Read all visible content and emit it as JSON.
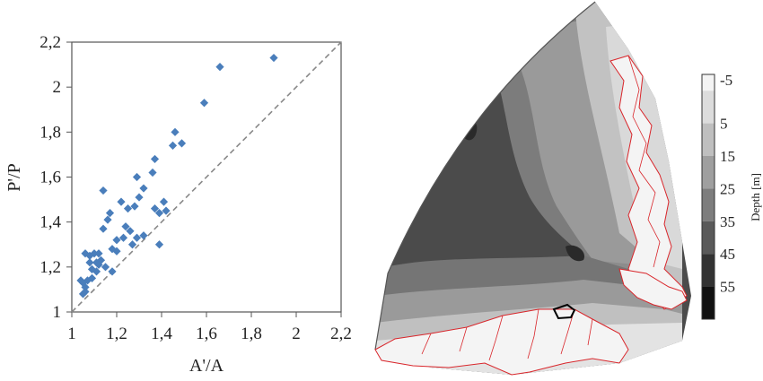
{
  "chart_data": [
    {
      "type": "scatter",
      "title": "",
      "xlabel": "A'/A",
      "ylabel": "P'/P",
      "xlim": [
        1,
        2.2
      ],
      "ylim": [
        1,
        2.2
      ],
      "x_ticks": [
        "1",
        "1,2",
        "1,4",
        "1,6",
        "1,8",
        "2",
        "2,2"
      ],
      "y_ticks": [
        "1",
        "1,2",
        "1,4",
        "1,6",
        "1,8",
        "2",
        "2,2"
      ],
      "reference_line": "y = x (dashed)",
      "marker": "diamond",
      "marker_color": "#4a7ebb",
      "grid": false,
      "points": [
        {
          "x": 1.9,
          "y": 2.13
        },
        {
          "x": 1.66,
          "y": 2.09
        },
        {
          "x": 1.59,
          "y": 1.93
        },
        {
          "x": 1.49,
          "y": 1.75
        },
        {
          "x": 1.46,
          "y": 1.8
        },
        {
          "x": 1.45,
          "y": 1.74
        },
        {
          "x": 1.37,
          "y": 1.68
        },
        {
          "x": 1.36,
          "y": 1.62
        },
        {
          "x": 1.29,
          "y": 1.6
        },
        {
          "x": 1.14,
          "y": 1.54
        },
        {
          "x": 1.32,
          "y": 1.55
        },
        {
          "x": 1.41,
          "y": 1.49
        },
        {
          "x": 1.42,
          "y": 1.45
        },
        {
          "x": 1.37,
          "y": 1.46
        },
        {
          "x": 1.39,
          "y": 1.44
        },
        {
          "x": 1.3,
          "y": 1.51
        },
        {
          "x": 1.28,
          "y": 1.47
        },
        {
          "x": 1.25,
          "y": 1.46
        },
        {
          "x": 1.22,
          "y": 1.49
        },
        {
          "x": 1.17,
          "y": 1.44
        },
        {
          "x": 1.16,
          "y": 1.41
        },
        {
          "x": 1.14,
          "y": 1.37
        },
        {
          "x": 1.24,
          "y": 1.38
        },
        {
          "x": 1.2,
          "y": 1.32
        },
        {
          "x": 1.26,
          "y": 1.36
        },
        {
          "x": 1.32,
          "y": 1.34
        },
        {
          "x": 1.29,
          "y": 1.33
        },
        {
          "x": 1.27,
          "y": 1.3
        },
        {
          "x": 1.23,
          "y": 1.33
        },
        {
          "x": 1.39,
          "y": 1.3
        },
        {
          "x": 1.18,
          "y": 1.28
        },
        {
          "x": 1.2,
          "y": 1.27
        },
        {
          "x": 1.12,
          "y": 1.26
        },
        {
          "x": 1.1,
          "y": 1.26
        },
        {
          "x": 1.08,
          "y": 1.25
        },
        {
          "x": 1.13,
          "y": 1.23
        },
        {
          "x": 1.11,
          "y": 1.22
        },
        {
          "x": 1.08,
          "y": 1.22
        },
        {
          "x": 1.15,
          "y": 1.2
        },
        {
          "x": 1.09,
          "y": 1.19
        },
        {
          "x": 1.06,
          "y": 1.26
        },
        {
          "x": 1.18,
          "y": 1.18
        },
        {
          "x": 1.11,
          "y": 1.18
        },
        {
          "x": 1.09,
          "y": 1.15
        },
        {
          "x": 1.07,
          "y": 1.14
        },
        {
          "x": 1.05,
          "y": 1.13
        },
        {
          "x": 1.04,
          "y": 1.14
        },
        {
          "x": 1.06,
          "y": 1.11
        },
        {
          "x": 1.06,
          "y": 1.09
        },
        {
          "x": 1.05,
          "y": 1.08
        },
        {
          "x": 1.12,
          "y": 1.21
        }
      ]
    },
    {
      "type": "heatmap",
      "colorbar_label": "Depth [m]",
      "colorbar_ticks": [
        "-5",
        "5",
        "15",
        "25",
        "35",
        "45",
        "55"
      ],
      "colorbar_colors": [
        "#f4f4f4",
        "#dcdcdc",
        "#bfbfbf",
        "#9f9f9f",
        "#7d7d7d",
        "#5a5a5a",
        "#333333",
        "#111111"
      ],
      "outline_color": "#d9262b"
    }
  ]
}
